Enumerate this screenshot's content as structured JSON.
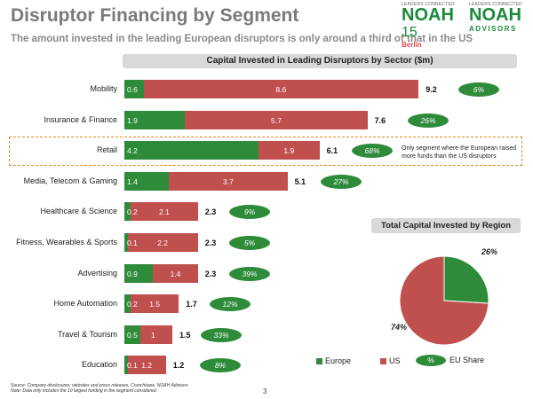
{
  "header": {
    "title": "Disruptor Financing by Segment",
    "subtitle": "The amount invested in the leading European disruptors is only around a third of that in the US"
  },
  "logos": {
    "left_small": "LEADERS CONNECTED",
    "left_word": "NOAH",
    "left_num": "15",
    "left_sub": "Berlin",
    "right_small": "LEADERS CONNECTED",
    "right_word": "NOAH",
    "right_sub": "ADVISORS"
  },
  "chart_data": [
    {
      "type": "bar",
      "stacked": true,
      "orientation": "horizontal",
      "title": "Capital Invested in Leading Disruptors by Sector ($m)",
      "categories": [
        "Mobility",
        "Insurance & Finance",
        "Retail",
        "Media, Telecom & Gaming",
        "Healthcare & Science",
        "Fitness, Wearables & Sports",
        "Advertising",
        "Home Automation",
        "Travel & Tourism",
        "Education"
      ],
      "series": [
        {
          "name": "Europe",
          "color": "#2e8b3a",
          "values": [
            0.6,
            1.9,
            4.2,
            1.4,
            0.2,
            0.1,
            0.9,
            0.2,
            0.5,
            0.1
          ]
        },
        {
          "name": "US",
          "color": "#c0504d",
          "values": [
            8.6,
            5.7,
            1.9,
            3.7,
            2.1,
            2.2,
            1.4,
            1.5,
            1.0,
            1.2
          ]
        }
      ],
      "totals": [
        "9.2",
        "7.6",
        "6.1",
        "5.1",
        "2.3",
        "2.3",
        "2.3",
        "1.7",
        "1.5",
        "1.2"
      ],
      "eu_share": [
        "6%",
        "26%",
        "68%",
        "27%",
        "9%",
        "5%",
        "39%",
        "12%",
        "33%",
        "8%"
      ],
      "highlight_index": 2,
      "annotation": "Only segment where the European raised more funds than the US disruptors",
      "legend": {
        "europe": "Europe",
        "us": "US",
        "share_symbol": "%",
        "share": "EU Share"
      }
    },
    {
      "type": "pie",
      "title": "Total Capital Invested by Region",
      "labels": [
        "Europe",
        "US"
      ],
      "values": [
        26,
        74
      ],
      "value_labels": [
        "26%",
        "74%"
      ],
      "colors": [
        "#2e8b3a",
        "#c0504d"
      ]
    }
  ],
  "footer": {
    "source": "Source: Company disclosures; websites and press releases, Crunchbase, NOAH Advisors.",
    "note": "Note: Data only includes the 10 largest funding in the segment considered.",
    "page": "3"
  }
}
